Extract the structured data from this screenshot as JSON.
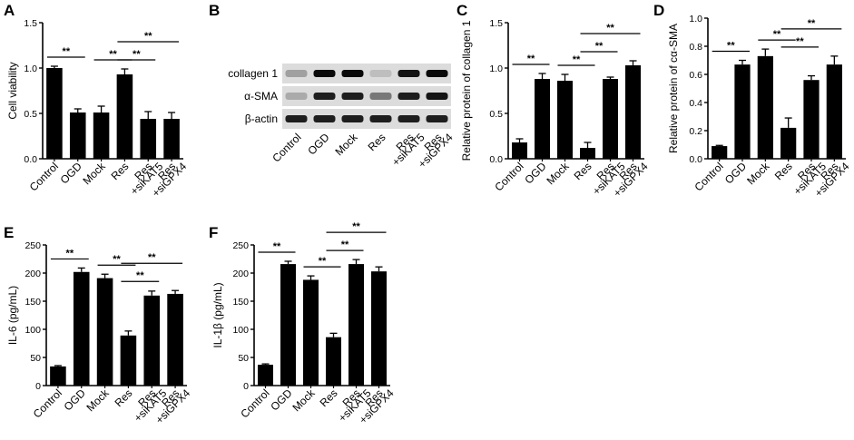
{
  "panel_letters": [
    "A",
    "B",
    "C",
    "D",
    "E",
    "F"
  ],
  "blot": {
    "rows": [
      "collagen 1",
      "α-SMA",
      "β-actin"
    ],
    "lanes": [
      [
        "Control"
      ],
      [
        "OGD"
      ],
      [
        "Mock"
      ],
      [
        "Res"
      ],
      [
        "Res",
        "+siKAT5"
      ],
      [
        "Res",
        "+siGPX4"
      ]
    ],
    "band_intensity": [
      [
        0.25,
        1.0,
        1.0,
        0.1,
        0.95,
        1.0
      ],
      [
        0.2,
        0.9,
        0.9,
        0.45,
        0.9,
        0.95
      ],
      [
        0.9,
        0.9,
        0.9,
        0.9,
        0.9,
        0.9
      ]
    ]
  },
  "colors": {
    "bar": "#000000",
    "axis": "#000000",
    "blot_bg": "#d8d8d8",
    "band": "#111111"
  },
  "chart_data": [
    {
      "type": "bar",
      "panel": "A",
      "ylabel": "Cell viability",
      "ylim": [
        0,
        1.5
      ],
      "yticks": [
        "0.0",
        "0.5",
        "1.0",
        "1.5"
      ],
      "categories": [
        [
          "Control"
        ],
        [
          "OGD"
        ],
        [
          "Mock"
        ],
        [
          "Res"
        ],
        [
          "Res",
          "+siKAT5"
        ],
        [
          "Res",
          "+siGPX4"
        ]
      ],
      "values": [
        1.0,
        0.51,
        0.51,
        0.93,
        0.44,
        0.44
      ],
      "errors": [
        0.02,
        0.04,
        0.07,
        0.06,
        0.08,
        0.07
      ],
      "significance": [
        {
          "from": 0,
          "to": 1,
          "label": "**"
        },
        {
          "from": 2,
          "to": 3,
          "label": "**"
        },
        {
          "from": 3,
          "to": 4,
          "label": "**"
        },
        {
          "from": 3,
          "to": 5,
          "label": "**"
        }
      ]
    },
    {
      "type": "bar",
      "panel": "C",
      "ylabel": "Relative protein of collagen 1",
      "ylim": [
        0,
        1.5
      ],
      "yticks": [
        "0.0",
        "0.5",
        "1.0",
        "1.5"
      ],
      "categories": [
        [
          "Control"
        ],
        [
          "OGD"
        ],
        [
          "Mock"
        ],
        [
          "Res"
        ],
        [
          "Res",
          "+siKAT5"
        ],
        [
          "Res",
          "+siGPX4"
        ]
      ],
      "values": [
        0.18,
        0.88,
        0.86,
        0.12,
        0.88,
        1.03
      ],
      "errors": [
        0.04,
        0.06,
        0.07,
        0.06,
        0.02,
        0.05
      ],
      "significance": [
        {
          "from": 0,
          "to": 1,
          "label": "**"
        },
        {
          "from": 2,
          "to": 3,
          "label": "**"
        },
        {
          "from": 3,
          "to": 4,
          "label": "**"
        },
        {
          "from": 3,
          "to": 5,
          "label": "**"
        }
      ]
    },
    {
      "type": "bar",
      "panel": "D",
      "ylabel": "Relative protein of cα-SMA",
      "ylim": [
        0,
        1.0
      ],
      "yticks": [
        "0.0",
        "0.2",
        "0.4",
        "0.6",
        "0.8",
        "1.0"
      ],
      "categories": [
        [
          "Control"
        ],
        [
          "OGD"
        ],
        [
          "Mock"
        ],
        [
          "Res"
        ],
        [
          "Res",
          "+siKAT5"
        ],
        [
          "Res",
          "+siGPX4"
        ]
      ],
      "values": [
        0.09,
        0.67,
        0.73,
        0.22,
        0.56,
        0.67
      ],
      "errors": [
        0.005,
        0.03,
        0.05,
        0.07,
        0.03,
        0.06
      ],
      "significance": [
        {
          "from": 0,
          "to": 1,
          "label": "**"
        },
        {
          "from": 2,
          "to": 3,
          "label": "**"
        },
        {
          "from": 3,
          "to": 4,
          "label": "**"
        },
        {
          "from": 3,
          "to": 5,
          "label": "**"
        }
      ]
    },
    {
      "type": "bar",
      "panel": "E",
      "ylabel": "IL-6 (pg/mL)",
      "ylim": [
        0,
        250
      ],
      "yticks": [
        "0",
        "50",
        "100",
        "150",
        "200",
        "250"
      ],
      "categories": [
        [
          "Control"
        ],
        [
          "OGD"
        ],
        [
          "Mock"
        ],
        [
          "Res"
        ],
        [
          "Res",
          "+siKAT5"
        ],
        [
          "Res",
          "+siGPX4"
        ]
      ],
      "values": [
        34,
        202,
        191,
        89,
        160,
        163
      ],
      "errors": [
        1.5,
        7,
        7,
        8,
        8,
        6
      ],
      "significance": [
        {
          "from": 0,
          "to": 1,
          "label": "**"
        },
        {
          "from": 2,
          "to": 3,
          "label": "**"
        },
        {
          "from": 3,
          "to": 4,
          "label": "**"
        },
        {
          "from": 3,
          "to": 5,
          "label": "**"
        }
      ]
    },
    {
      "type": "bar",
      "panel": "F",
      "ylabel": "IL-1β (pg/mL)",
      "ylim": [
        0,
        250
      ],
      "yticks": [
        "0",
        "50",
        "100",
        "150",
        "200",
        "250"
      ],
      "categories": [
        [
          "Control"
        ],
        [
          "OGD"
        ],
        [
          "Mock"
        ],
        [
          "Res"
        ],
        [
          "Res",
          "+siKAT5"
        ],
        [
          "Res",
          "+siGPX4"
        ]
      ],
      "values": [
        37,
        216,
        188,
        86,
        216,
        203
      ],
      "errors": [
        1.5,
        5,
        7,
        7,
        8,
        8
      ],
      "significance": [
        {
          "from": 0,
          "to": 1,
          "label": "**"
        },
        {
          "from": 2,
          "to": 3,
          "label": "**"
        },
        {
          "from": 3,
          "to": 4,
          "label": "**"
        },
        {
          "from": 3,
          "to": 5,
          "label": "**"
        }
      ]
    }
  ]
}
